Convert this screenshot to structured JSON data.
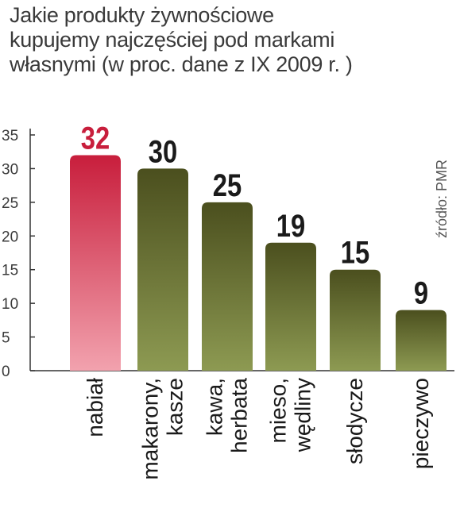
{
  "title_lines": [
    "Jakie produkty żywnościowe",
    "kupujemy najczęściej pod markami",
    "własnymi (w proc. dane z IX 2009 r. )"
  ],
  "source": "źródło: PMR",
  "colors": {
    "highlight_top": "#c81e3c",
    "highlight_bottom": "#f2a2ae",
    "highlight_label": "#c81e3c",
    "bar_top": "#4b4f1e",
    "bar_bottom": "#8d9a52",
    "value_label": "#1a1a1a",
    "axis": "#333333"
  },
  "chart_data": {
    "type": "bar",
    "categories": [
      [
        "nabiał"
      ],
      [
        "makarony,",
        "kasze"
      ],
      [
        "kawa,",
        "herbata"
      ],
      [
        "mieso,",
        "wędliny"
      ],
      [
        "słodycze"
      ],
      [
        "pieczywo"
      ]
    ],
    "values": [
      32,
      30,
      25,
      19,
      15,
      9
    ],
    "highlight_index": 0,
    "yticks": [
      0,
      5,
      10,
      15,
      20,
      25,
      30,
      35
    ],
    "ylim": [
      0,
      35
    ],
    "legend": "none",
    "grid": false
  }
}
